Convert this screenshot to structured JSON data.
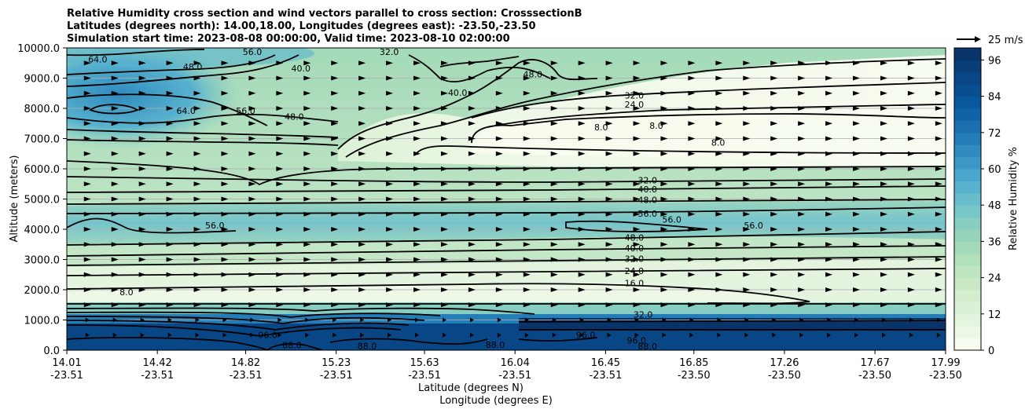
{
  "chart_data": {
    "type": "heatmap",
    "title_lines": [
      "Relative Humidity cross section and wind vectors parallel to cross section: CrosssectionB",
      "Latitudes (degrees north): 14.00,18.00, Longitudes (degrees east): -23.50,-23.50",
      "Simulation start time: 2023-08-08 00:00:00, Valid time: 2023-08-10 02:00:00"
    ],
    "ylabel": "Altitude (meters)",
    "xlabel_lat": "Latitude (degrees N)",
    "xlabel_lon": "Longitude (degrees E)",
    "ylim": [
      0,
      10000
    ],
    "y_ticks": [
      "0.0",
      "1000.0",
      "2000.0",
      "3000.0",
      "4000.0",
      "5000.0",
      "6000.0",
      "7000.0",
      "8000.0",
      "9000.0",
      "10000.0"
    ],
    "x_ticks": [
      {
        "lat": "14.01",
        "lon": "-23.51"
      },
      {
        "lat": "14.42",
        "lon": "-23.51"
      },
      {
        "lat": "14.82",
        "lon": "-23.51"
      },
      {
        "lat": "15.23",
        "lon": "-23.51"
      },
      {
        "lat": "15.63",
        "lon": "-23.51"
      },
      {
        "lat": "16.04",
        "lon": "-23.51"
      },
      {
        "lat": "16.45",
        "lon": "-23.51"
      },
      {
        "lat": "16.85",
        "lon": "-23.50"
      },
      {
        "lat": "17.26",
        "lon": "-23.50"
      },
      {
        "lat": "17.67",
        "lon": "-23.50"
      },
      {
        "lat": "17.99",
        "lon": "-23.50"
      }
    ],
    "colorbar": {
      "label": "Relative Humidity %",
      "range": [
        0,
        100
      ],
      "ticks": [
        "0",
        "12",
        "24",
        "36",
        "48",
        "60",
        "72",
        "84",
        "96"
      ],
      "levels": [
        0,
        4,
        8,
        12,
        16,
        20,
        24,
        28,
        32,
        36,
        40,
        44,
        48,
        52,
        56,
        60,
        64,
        68,
        72,
        76,
        80,
        84,
        88,
        92,
        96,
        100
      ],
      "colors": [
        "#f7fcf0",
        "#eef8e7",
        "#e4f4df",
        "#dbf1d6",
        "#d3edcd",
        "#c8e9c3",
        "#bde5be",
        "#b1e0ba",
        "#a4dab9",
        "#96d3bd",
        "#87cdc1",
        "#77c6c8",
        "#67bdcc",
        "#58b2ce",
        "#4aa6cd",
        "#3c98c6",
        "#308bbf",
        "#257db7",
        "#1b6faf",
        "#1163a7",
        "#08589e",
        "#084f91",
        "#084685",
        "#083d78",
        "#08346a"
      ]
    },
    "quiver_key": "25 m/s",
    "contour_labels": [
      {
        "text": "64.0",
        "lat": 14.15,
        "alt": 9600
      },
      {
        "text": "48.0",
        "lat": 14.58,
        "alt": 9350
      },
      {
        "text": "56.0",
        "lat": 14.85,
        "alt": 9850
      },
      {
        "text": "40.0",
        "lat": 15.07,
        "alt": 9300
      },
      {
        "text": "32.0",
        "lat": 15.47,
        "alt": 9850
      },
      {
        "text": "40.0",
        "lat": 15.78,
        "alt": 8500
      },
      {
        "text": "48.0",
        "lat": 16.12,
        "alt": 9100
      },
      {
        "text": "64.0",
        "lat": 14.55,
        "alt": 7900
      },
      {
        "text": "56.0",
        "lat": 14.82,
        "alt": 7900
      },
      {
        "text": "48.0",
        "lat": 15.04,
        "alt": 7700
      },
      {
        "text": "32.0",
        "lat": 16.58,
        "alt": 8400
      },
      {
        "text": "24.0",
        "lat": 16.58,
        "alt": 8100
      },
      {
        "text": "8.0",
        "lat": 16.43,
        "alt": 7350
      },
      {
        "text": "8.0",
        "lat": 16.68,
        "alt": 7400
      },
      {
        "text": "8.0",
        "lat": 16.96,
        "alt": 6850
      },
      {
        "text": "32.0",
        "lat": 16.64,
        "alt": 5600
      },
      {
        "text": "40.0",
        "lat": 16.64,
        "alt": 5300
      },
      {
        "text": "48.0",
        "lat": 16.64,
        "alt": 4950
      },
      {
        "text": "56.0",
        "lat": 16.64,
        "alt": 4500
      },
      {
        "text": "56.0",
        "lat": 16.75,
        "alt": 4300
      },
      {
        "text": "56.0",
        "lat": 17.12,
        "alt": 4100
      },
      {
        "text": "56.0",
        "lat": 14.68,
        "alt": 4100
      },
      {
        "text": "48.0",
        "lat": 16.58,
        "alt": 3700
      },
      {
        "text": "40.0",
        "lat": 16.58,
        "alt": 3350
      },
      {
        "text": "32.0",
        "lat": 16.58,
        "alt": 3000
      },
      {
        "text": "24.0",
        "lat": 16.58,
        "alt": 2600
      },
      {
        "text": "16.0",
        "lat": 16.58,
        "alt": 2200
      },
      {
        "text": "8.0",
        "lat": 14.28,
        "alt": 1900
      },
      {
        "text": "32.0",
        "lat": 16.62,
        "alt": 1150
      },
      {
        "text": "96.0",
        "lat": 14.92,
        "alt": 480
      },
      {
        "text": "88.0",
        "lat": 15.03,
        "alt": 140
      },
      {
        "text": "88.0",
        "lat": 15.37,
        "alt": 120
      },
      {
        "text": "88.0",
        "lat": 15.95,
        "alt": 150
      },
      {
        "text": "96.0",
        "lat": 16.59,
        "alt": 300
      },
      {
        "text": "88.0",
        "lat": 16.64,
        "alt": 100
      },
      {
        "text": "96.0",
        "lat": 16.36,
        "alt": 480
      }
    ]
  }
}
